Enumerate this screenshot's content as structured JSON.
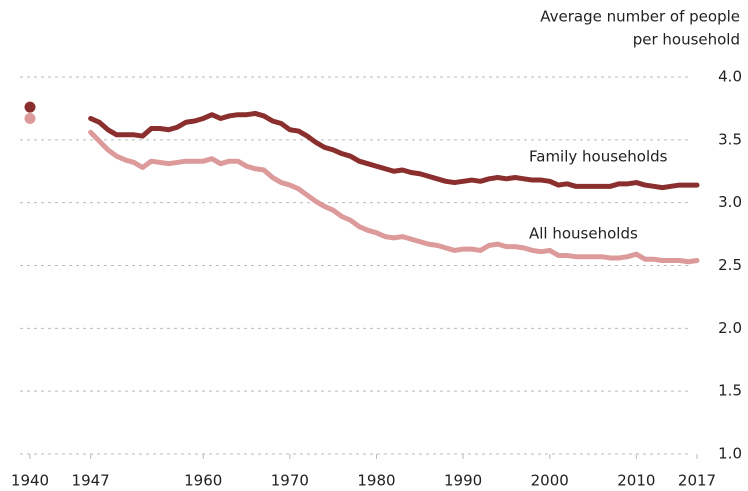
{
  "chart_data": {
    "type": "line",
    "ylabel": [
      "Average number of people",
      "per household"
    ],
    "x": [
      1940,
      1941,
      1942,
      1943,
      1944,
      1945,
      1946,
      1947,
      1948,
      1949,
      1950,
      1951,
      1952,
      1953,
      1954,
      1955,
      1956,
      1957,
      1958,
      1959,
      1960,
      1961,
      1962,
      1963,
      1964,
      1965,
      1966,
      1967,
      1968,
      1969,
      1970,
      1971,
      1972,
      1973,
      1974,
      1975,
      1976,
      1977,
      1978,
      1979,
      1980,
      1981,
      1982,
      1983,
      1984,
      1985,
      1986,
      1987,
      1988,
      1989,
      1990,
      1991,
      1992,
      1993,
      1994,
      1995,
      1996,
      1997,
      1998,
      1999,
      2000,
      2001,
      2002,
      2003,
      2004,
      2005,
      2006,
      2007,
      2008,
      2009,
      2010,
      2011,
      2012,
      2013,
      2014,
      2015,
      2016,
      2017
    ],
    "series": [
      {
        "name": "Family households",
        "color": "#8b2e2e",
        "values": [
          3.76,
          null,
          null,
          null,
          null,
          null,
          null,
          3.67,
          3.64,
          3.58,
          3.54,
          3.54,
          3.54,
          3.53,
          3.59,
          3.59,
          3.58,
          3.6,
          3.64,
          3.65,
          3.67,
          3.7,
          3.67,
          3.69,
          3.7,
          3.7,
          3.71,
          3.69,
          3.65,
          3.63,
          3.58,
          3.57,
          3.53,
          3.48,
          3.44,
          3.42,
          3.39,
          3.37,
          3.33,
          3.31,
          3.29,
          3.27,
          3.25,
          3.26,
          3.24,
          3.23,
          3.21,
          3.19,
          3.17,
          3.16,
          3.17,
          3.18,
          3.17,
          3.19,
          3.2,
          3.19,
          3.2,
          3.19,
          3.18,
          3.18,
          3.17,
          3.14,
          3.15,
          3.13,
          3.13,
          3.13,
          3.13,
          3.13,
          3.15,
          3.15,
          3.16,
          3.14,
          3.13,
          3.12,
          3.13,
          3.14,
          3.14,
          3.14
        ]
      },
      {
        "name": "All households",
        "color": "#dc9a9a",
        "values": [
          3.67,
          null,
          null,
          null,
          null,
          null,
          null,
          3.56,
          3.49,
          3.42,
          3.37,
          3.34,
          3.32,
          3.28,
          3.33,
          3.32,
          3.31,
          3.32,
          3.33,
          3.33,
          3.33,
          3.35,
          3.31,
          3.33,
          3.33,
          3.29,
          3.27,
          3.26,
          3.2,
          3.16,
          3.14,
          3.11,
          3.06,
          3.01,
          2.97,
          2.94,
          2.89,
          2.86,
          2.81,
          2.78,
          2.76,
          2.73,
          2.72,
          2.73,
          2.71,
          2.69,
          2.67,
          2.66,
          2.64,
          2.62,
          2.63,
          2.63,
          2.62,
          2.66,
          2.67,
          2.65,
          2.65,
          2.64,
          2.62,
          2.61,
          2.62,
          2.58,
          2.58,
          2.57,
          2.57,
          2.57,
          2.57,
          2.56,
          2.56,
          2.57,
          2.59,
          2.55,
          2.55,
          2.54,
          2.54,
          2.54,
          2.53,
          2.54
        ]
      }
    ],
    "xlim": [
      1940,
      2017
    ],
    "xticks": [
      1940,
      1947,
      1960,
      1970,
      1980,
      1990,
      2000,
      2010,
      2017
    ],
    "ylim": [
      1.0,
      4.0
    ],
    "yticks": [
      {
        "value": 1.0,
        "label": "1.0"
      },
      1.5,
      {
        "value": 2.0,
        "label": "2.0"
      },
      2.5,
      {
        "value": 3.0,
        "label": "3.0"
      },
      3.5,
      {
        "value": 4.0,
        "label": "4.0"
      }
    ],
    "grid": true
  }
}
